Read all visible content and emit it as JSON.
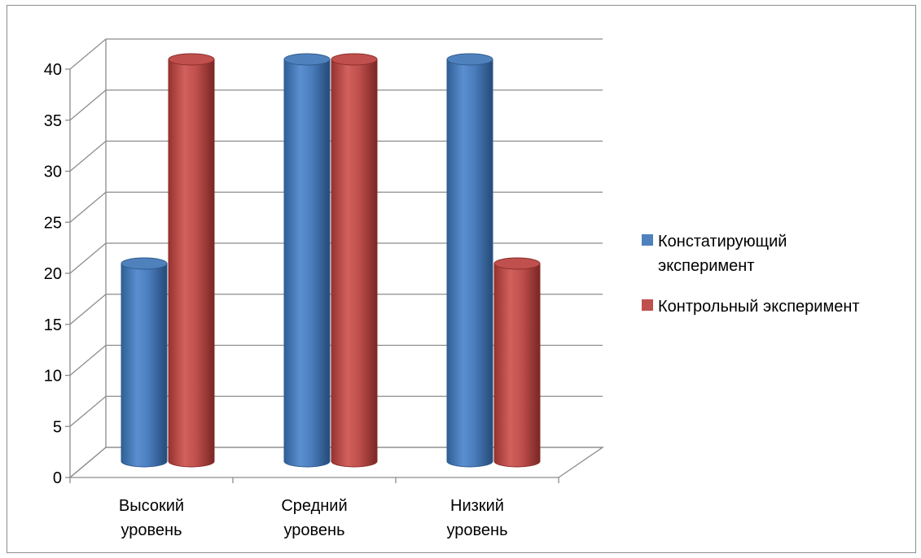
{
  "chart_data": {
    "type": "bar",
    "style": "3d-cylinder",
    "categories": [
      [
        "Высокий",
        "уровень"
      ],
      [
        "Средний",
        "уровень"
      ],
      [
        "Низкий",
        "уровень"
      ]
    ],
    "series": [
      {
        "name": [
          "Констатирующий",
          "эксперимент"
        ],
        "values": [
          20,
          40,
          40
        ],
        "color": "#4f81bd",
        "dark": "#2e5a8c"
      },
      {
        "name": [
          "Контрольный эксперимент"
        ],
        "values": [
          40,
          40,
          20
        ],
        "color": "#c0504d",
        "dark": "#8a2c2a"
      }
    ],
    "ylim": [
      0,
      40
    ],
    "yticks": [
      "0",
      "5",
      "10",
      "15",
      "20",
      "25",
      "30",
      "35",
      "40"
    ],
    "grid": true,
    "legend": "right"
  }
}
